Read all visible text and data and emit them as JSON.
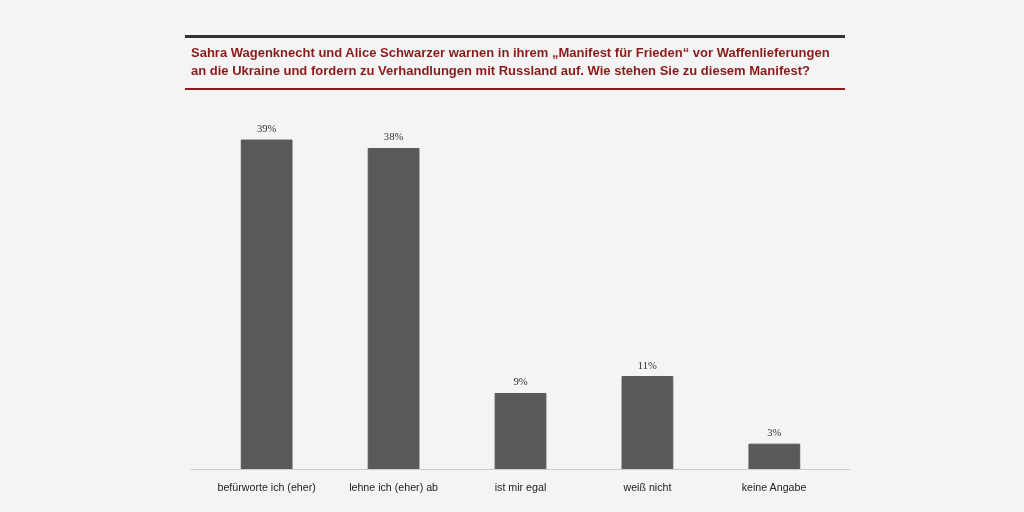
{
  "chart_data": {
    "type": "bar",
    "title": "Sahra Wagenknecht und Alice Schwarzer warnen in ihrem „Manifest für Frieden“ vor Waffenlieferungen an die Ukraine und fordern zu Verhandlungen mit Russland auf. Wie stehen Sie zu diesem Manifest?",
    "categories": [
      "befürworte ich (eher)",
      "lehne ich (eher) ab",
      "ist mir egal",
      "weiß nicht",
      "keine Angabe"
    ],
    "values": [
      39,
      38,
      9,
      11,
      3
    ],
    "value_labels": [
      "39%",
      "38%",
      "9%",
      "11%",
      "3%"
    ],
    "color": "#595959",
    "grid": false
  }
}
